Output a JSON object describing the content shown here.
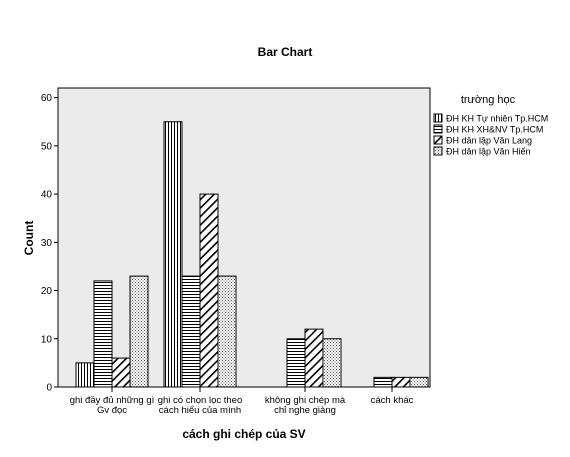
{
  "chart_data": {
    "type": "bar",
    "title": "Bar Chart",
    "xlabel": "cách ghi chép của SV",
    "ylabel": "Count",
    "ylim": [
      0,
      62
    ],
    "yticks": [
      0,
      10,
      20,
      30,
      40,
      50,
      60
    ],
    "grid": false,
    "legend_title": "trường học",
    "legend_position": "right",
    "plot_background": "#ebebeb",
    "categories": [
      [
        "ghi đầy đủ những gì",
        "Gv đọc"
      ],
      [
        "ghi có chọn lọc theo",
        "cách hiểu của mình"
      ],
      [
        "không ghi chép mà",
        "chỉ nghe giảng"
      ],
      [
        "cách khác"
      ]
    ],
    "series": [
      {
        "name": "ĐH KH Tự nhiên Tp.HCM",
        "pattern": "vertical-lines",
        "values": [
          5,
          55,
          0,
          0
        ]
      },
      {
        "name": "ĐH KH XH&NV Tp.HCM",
        "pattern": "horizontal-lines",
        "values": [
          22,
          23,
          10,
          2
        ]
      },
      {
        "name": "ĐH dân lập Văn Lang",
        "pattern": "diagonal-lines",
        "values": [
          6,
          40,
          12,
          2
        ]
      },
      {
        "name": "ĐH dân lập Văn Hiến",
        "pattern": "dots",
        "values": [
          23,
          23,
          10,
          2
        ]
      }
    ]
  }
}
